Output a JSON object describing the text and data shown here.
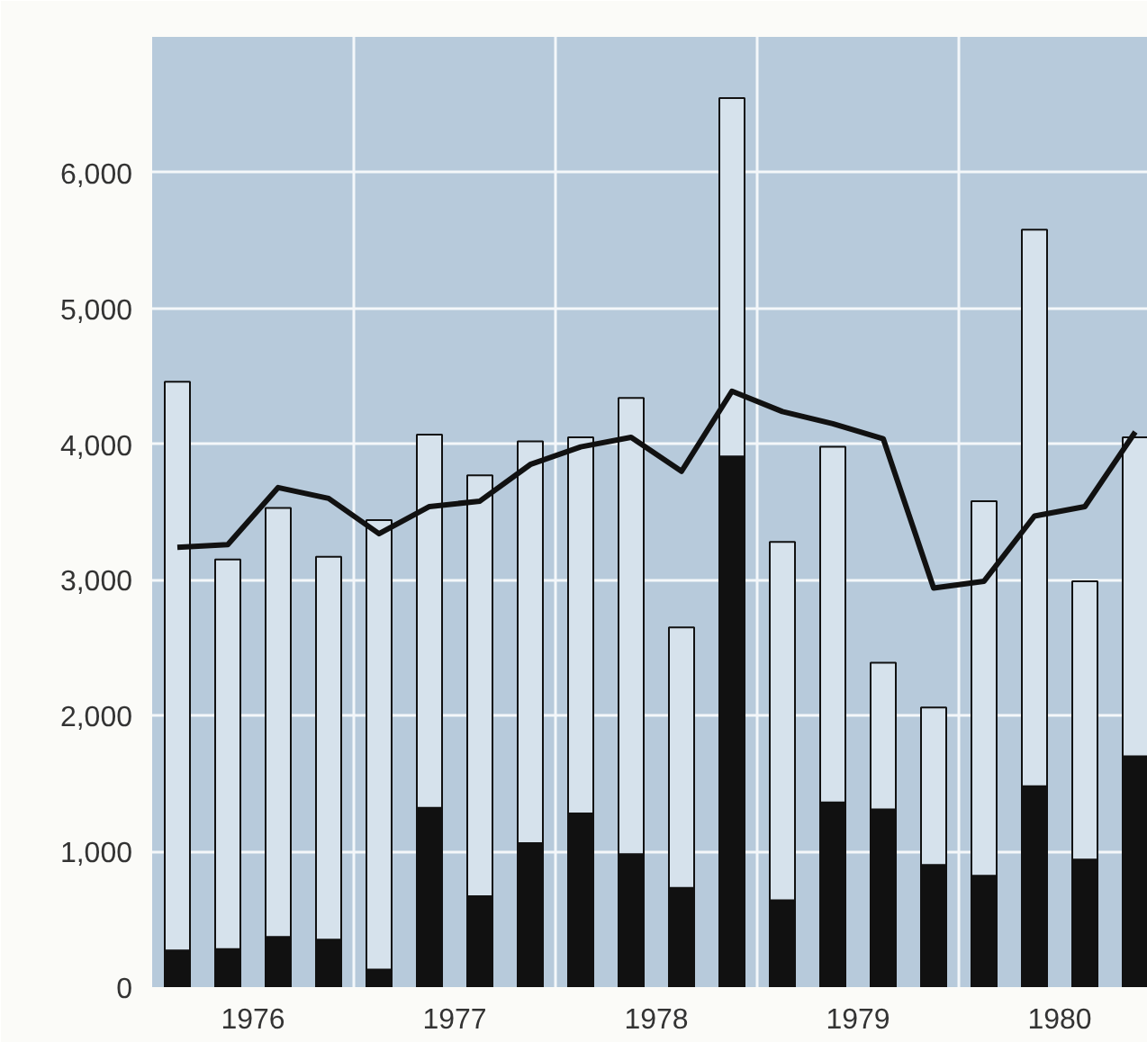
{
  "chart_data": {
    "type": "bar",
    "stacked": true,
    "x": [
      1975.625,
      1975.875,
      1976.125,
      1976.375,
      1976.625,
      1976.875,
      1977.125,
      1977.375,
      1977.625,
      1977.875,
      1978.125,
      1978.375,
      1978.625,
      1978.875,
      1979.125,
      1979.375,
      1979.625,
      1979.875,
      1980.125,
      1980.375
    ],
    "series": [
      {
        "color": "#111111",
        "values": [
          270,
          280,
          370,
          350,
          130,
          1320,
          670,
          1060,
          1280,
          980,
          730,
          3910,
          640,
          1360,
          1310,
          900,
          820,
          1480,
          940,
          1700
        ]
      },
      {
        "color": "#d6e2ec",
        "values": [
          4190,
          2870,
          3160,
          2820,
          3310,
          2750,
          3100,
          2960,
          2770,
          3360,
          1920,
          2640,
          2640,
          2620,
          1080,
          1160,
          2760,
          4100,
          2050,
          2350
        ]
      },
      {
        "type": "line",
        "color": "#111111",
        "values": [
          3240,
          3260,
          3680,
          3600,
          3340,
          3540,
          3580,
          3850,
          3980,
          4050,
          3800,
          4390,
          4240,
          4150,
          4040,
          2940,
          2990,
          3470,
          3540,
          4090
        ]
      }
    ],
    "xlim": [
      1975.5,
      1980.4375
    ],
    "xticks": [
      1976,
      {
        "value": 1976.5,
        "label": null
      },
      1977,
      {
        "value": 1977.5,
        "label": null
      },
      1978,
      {
        "value": 1978.5,
        "label": null
      },
      1979,
      {
        "value": 1979.5,
        "label": null
      },
      1980
    ],
    "ylim": [
      0,
      7000
    ],
    "yticks": [
      {
        "value": 0,
        "label": "0"
      },
      {
        "value": 1000,
        "label": "1,000"
      },
      {
        "value": 2000,
        "label": "2,000"
      },
      {
        "value": 3000,
        "label": "3,000"
      },
      {
        "value": 4000,
        "label": "4,000"
      },
      {
        "value": 5000,
        "label": "5,000"
      },
      {
        "value": 6000,
        "label": "6,000"
      }
    ],
    "grid": true
  }
}
